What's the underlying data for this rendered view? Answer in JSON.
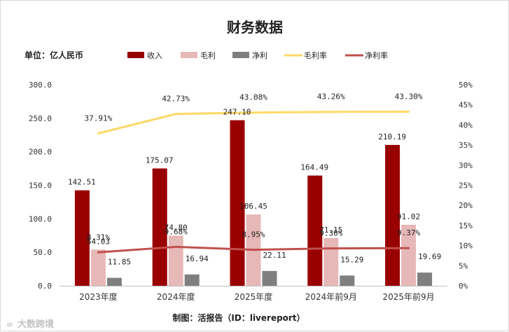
{
  "chart_data": {
    "type": "bar",
    "title": "财务数据",
    "unit_label": "单位：亿人民币",
    "source_label": "制图：活报告（ID：livereport）",
    "watermark": "大数跨境",
    "categories": [
      "2023年度",
      "2024年度",
      "2025年度",
      "2024年前9月",
      "2025年前9月"
    ],
    "series": [
      {
        "name": "收入",
        "type": "bar",
        "axis": "left",
        "color": "#990000",
        "values": [
          142.51,
          175.07,
          247.1,
          164.49,
          210.19
        ],
        "labels": [
          "142.51",
          "175.07",
          "247.10",
          "164.49",
          "210.19"
        ]
      },
      {
        "name": "毛利",
        "type": "bar",
        "axis": "left",
        "color": "#e6b8b7",
        "values": [
          54.03,
          74.8,
          106.45,
          71.15,
          91.02
        ],
        "labels": [
          "54.03",
          "74.80",
          "106.45",
          "71.15",
          "91.02"
        ]
      },
      {
        "name": "净利",
        "type": "bar",
        "axis": "left",
        "color": "#7f7f7f",
        "values": [
          11.85,
          16.94,
          22.11,
          15.29,
          19.69
        ],
        "labels": [
          "11.85",
          "16.94",
          "22.11",
          "15.29",
          "19.69"
        ]
      },
      {
        "name": "毛利率",
        "type": "line",
        "axis": "right",
        "color": "#ffd966",
        "values": [
          37.91,
          42.73,
          43.08,
          43.26,
          43.3
        ],
        "labels": [
          "37.91%",
          "42.73%",
          "43.08%",
          "43.26%",
          "43.30%"
        ]
      },
      {
        "name": "净利率",
        "type": "line",
        "axis": "right",
        "color": "#c0504d",
        "values": [
          8.31,
          9.68,
          8.95,
          9.3,
          9.37
        ],
        "labels": [
          "8.31%",
          "9.68%",
          "8.95%",
          "9.30%",
          "9.37%"
        ]
      }
    ],
    "y_left": {
      "min": 0,
      "max": 300,
      "ticks": [
        "0.0",
        "50.0",
        "100.0",
        "150.0",
        "200.0",
        "250.0",
        "300.0"
      ]
    },
    "y_right": {
      "min": 0,
      "max": 50,
      "ticks": [
        "0%",
        "5%",
        "10%",
        "15%",
        "20%",
        "25%",
        "30%",
        "35%",
        "40%",
        "45%",
        "50%"
      ]
    },
    "legend_position": "top",
    "grid": false
  }
}
